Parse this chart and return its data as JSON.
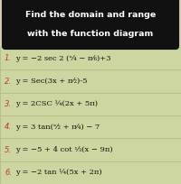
{
  "title_line1": "Find the domain and range",
  "title_line2": "with the function diagram",
  "bg_color": "#d4cbb0",
  "title_box_color": "#111111",
  "title_fg": "#ffffff",
  "row_bg": "#cdd5a0",
  "row_border": "#b0b888",
  "number_color": "#c0392b",
  "eq_color": "#111111",
  "equations": [
    [
      "1.",
      "y = −2 sec 2 (ˣ⁄₄ − π⁄₆)+3"
    ],
    [
      "2.",
      "y = Sec(3x + π⁄₂)-5"
    ],
    [
      "3.",
      "y = 2CSC ¼(2x + 5π)"
    ],
    [
      "4.",
      "y = 3 tan(ˣ⁄₂ + π⁄₄) − 7"
    ],
    [
      "5.",
      "y = −5 + 4 cot ⅓(x − 9π)"
    ],
    [
      "6.",
      "y = −2 tan ¼(5x + 2π)"
    ]
  ],
  "num_rows": 6,
  "figsize": [
    2.0,
    2.04
  ],
  "dpi": 100
}
